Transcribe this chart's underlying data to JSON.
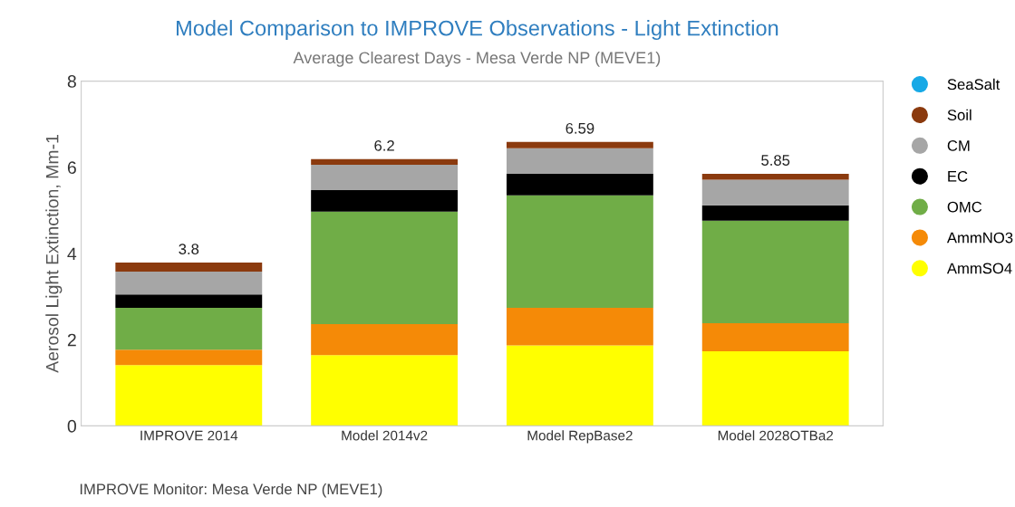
{
  "chart_data": {
    "type": "bar",
    "title": "Model Comparison to IMPROVE Observations - Light Extinction",
    "subtitle": "Average Clearest Days - Mesa Verde NP (MEVE1)",
    "ylabel": "Aerosol Light Extinction, Mm-1",
    "categories": [
      "IMPROVE 2014",
      "Model 2014v2",
      "Model RepBase2",
      "Model 2028OTBa2"
    ],
    "stacked": true,
    "ylim": [
      0,
      8
    ],
    "yticks": [
      0,
      2,
      4,
      6,
      8
    ],
    "grid": false,
    "legend": "right",
    "marker": "circle",
    "series": [
      {
        "name": "AmmSO4",
        "color": "#ffff00",
        "values": [
          1.41,
          1.64,
          1.87,
          1.73
        ]
      },
      {
        "name": "AmmNO3",
        "color": "#f58a07",
        "values": [
          0.36,
          0.72,
          0.87,
          0.65
        ]
      },
      {
        "name": "OMC",
        "color": "#70ad47",
        "values": [
          0.97,
          2.61,
          2.61,
          2.38
        ]
      },
      {
        "name": "EC",
        "color": "#000000",
        "values": [
          0.31,
          0.5,
          0.5,
          0.36
        ]
      },
      {
        "name": "CM",
        "color": "#a6a6a6",
        "values": [
          0.53,
          0.59,
          0.59,
          0.59
        ]
      },
      {
        "name": "Soil",
        "color": "#8b3a0e",
        "values": [
          0.21,
          0.13,
          0.15,
          0.14
        ]
      },
      {
        "name": "SeaSalt",
        "color": "#17a9e6",
        "values": [
          null,
          null,
          null,
          null
        ]
      }
    ],
    "totals": [
      "3.8",
      "6.2",
      "6.59",
      "5.85"
    ],
    "annotations": [
      "IMPROVE Monitor: Mesa Verde NP (MEVE1)"
    ]
  }
}
